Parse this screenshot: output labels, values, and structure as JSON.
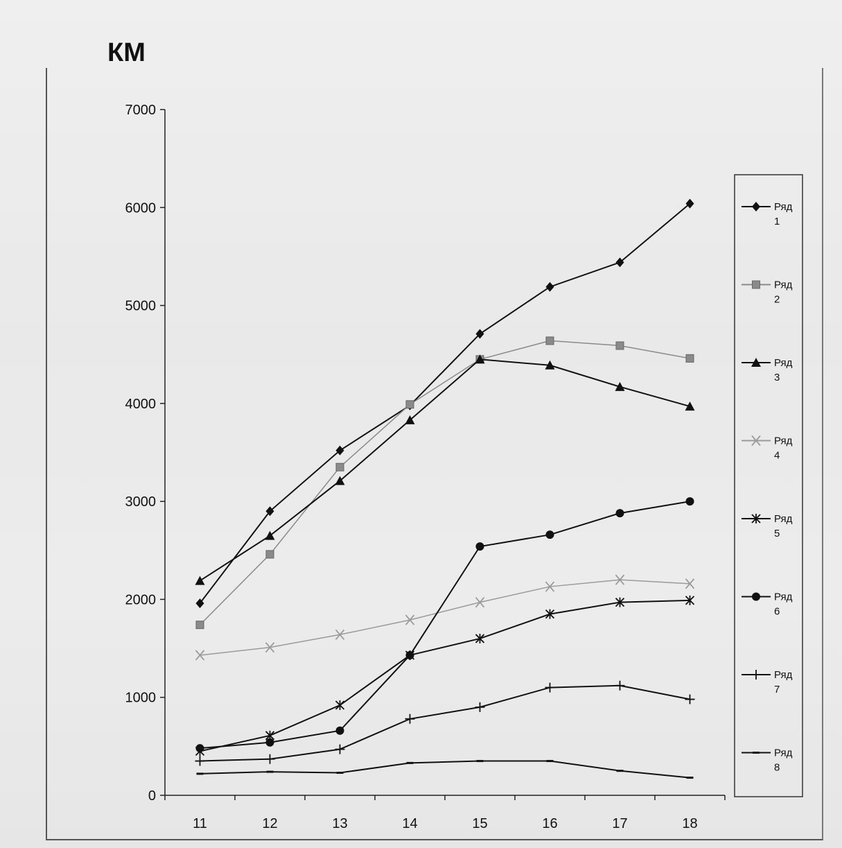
{
  "chart_data": {
    "type": "line",
    "title": "",
    "ylabel": "КМ",
    "xlabel": "",
    "x": [
      11,
      12,
      13,
      14,
      15,
      16,
      17,
      18
    ],
    "ylim": [
      0,
      7000
    ],
    "yticks": [
      0,
      1000,
      2000,
      3000,
      4000,
      5000,
      6000,
      7000
    ],
    "grid": false,
    "legend": "right",
    "series": [
      {
        "name": "Ряд 1",
        "values": [
          1960,
          2900,
          3520,
          3980,
          4710,
          5190,
          5440,
          6040
        ],
        "marker": "diamond",
        "color": "#111111"
      },
      {
        "name": "Ряд 2",
        "values": [
          1740,
          2460,
          3350,
          3990,
          4450,
          4640,
          4590,
          4460
        ],
        "marker": "square",
        "color": "#8a8a8a"
      },
      {
        "name": "Ряд 3",
        "values": [
          2190,
          2650,
          3210,
          3830,
          4450,
          4390,
          4170,
          3970
        ],
        "marker": "triangle",
        "color": "#111111"
      },
      {
        "name": "Ряд 4",
        "values": [
          1430,
          1510,
          1640,
          1790,
          1970,
          2130,
          2200,
          2160
        ],
        "marker": "x",
        "color": "#9a9a9a"
      },
      {
        "name": "Ряд 5",
        "values": [
          450,
          610,
          920,
          1430,
          1600,
          1850,
          1970,
          1990
        ],
        "marker": "asterisk",
        "color": "#111111"
      },
      {
        "name": "Ряд 6",
        "values": [
          480,
          540,
          660,
          1430,
          2540,
          2660,
          2880,
          3000
        ],
        "marker": "circle",
        "color": "#111111"
      },
      {
        "name": "Ряд 7",
        "values": [
          350,
          370,
          470,
          780,
          900,
          1100,
          1120,
          980
        ],
        "marker": "plus",
        "color": "#111111"
      },
      {
        "name": "Ряд 8",
        "values": [
          220,
          240,
          230,
          330,
          350,
          350,
          250,
          180
        ],
        "marker": "dash",
        "color": "#111111"
      }
    ]
  }
}
